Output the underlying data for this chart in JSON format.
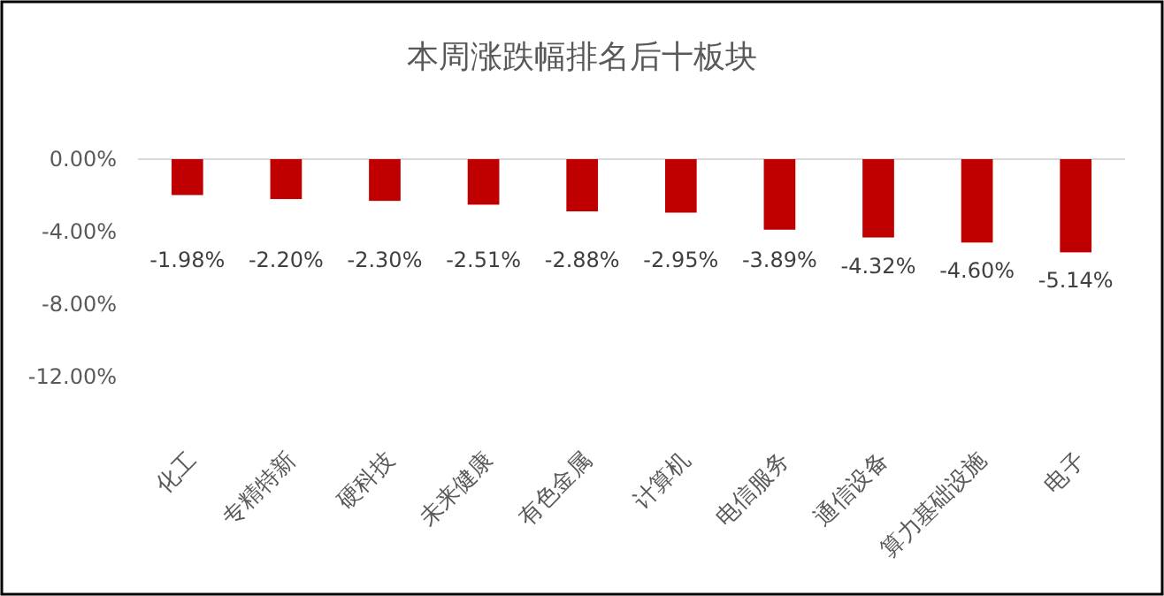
{
  "chart_data": {
    "type": "bar",
    "title": "本周涨跌幅排名后十板块",
    "categories": [
      "化工",
      "专精特新",
      "硬科技",
      "未来健康",
      "有色金属",
      "计算机",
      "电信服务",
      "通信设备",
      "算力基础设施",
      "电子"
    ],
    "values": [
      -1.98,
      -2.2,
      -2.3,
      -2.51,
      -2.88,
      -2.95,
      -3.89,
      -4.32,
      -4.6,
      -5.14
    ],
    "color": "#c00000",
    "ylim": [
      -12,
      0
    ],
    "value_labels": [
      "-1.98%",
      "-2.20%",
      "-2.30%",
      "-2.51%",
      "-2.88%",
      "-2.95%",
      "-3.89%",
      "-4.32%",
      "-4.60%",
      "-5.14%"
    ],
    "yticks": [
      {
        "value": 0,
        "label": "0.00%"
      },
      {
        "value": -4,
        "label": "-4.00%"
      },
      {
        "value": -8,
        "label": "-8.00%"
      },
      {
        "value": -12,
        "label": "-12.00%"
      }
    ],
    "grid": false
  }
}
